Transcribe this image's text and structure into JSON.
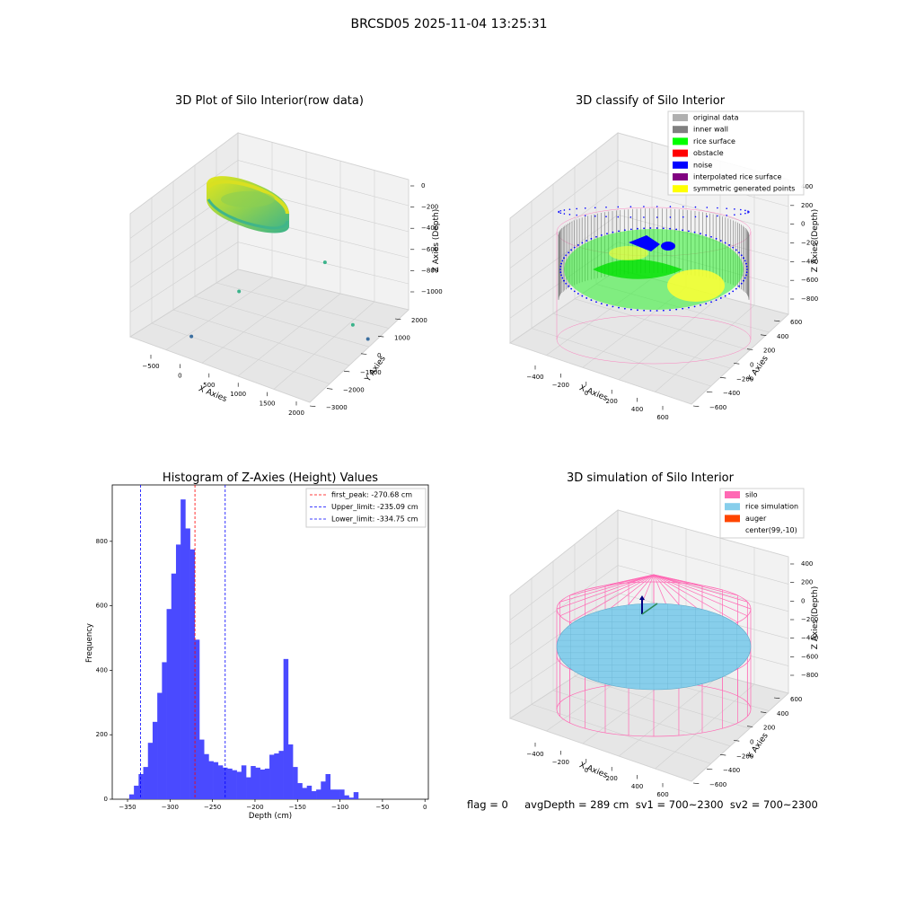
{
  "figure": {
    "suptitle": "BRCSD05 2025-11-04 13:25:31",
    "status_text": "flag = 0     avgDepth = 289 cm  sv1 = 700~2300  sv2 = 700~2300"
  },
  "colors": {
    "rice_gradient_low": "#3bb38b",
    "rice_gradient_high": "#e6e619",
    "original_data": "#b0b0b0",
    "inner_wall": "#808080",
    "rice_surface": "#00ff00",
    "obstacle": "#ff0000",
    "noise": "#0000ff",
    "interpolated_rice_surface": "#800080",
    "symmetric_generated_points": "#ffff00",
    "silo": "#ff69b4",
    "rice_simulation": "#87ceeb",
    "auger": "#ff4500",
    "hist_bar": "#4a4aff",
    "peak_line": "#ff0000",
    "limit_line": "#0000ff"
  },
  "chart_data": [
    {
      "type": "scatter3d",
      "title": "3D Plot of Silo Interior(row data)",
      "xlabel": "X Axies",
      "ylabel": "Y Axies",
      "zlabel": "Z Axies (Depth)",
      "x_ticks": [
        "−500",
        "0",
        "500",
        "1000",
        "1500",
        "2000"
      ],
      "y_ticks": [
        "2000",
        "1000",
        "0",
        "−1000",
        "−2000",
        "−3000"
      ],
      "z_ticks": [
        "0",
        "−200",
        "−400",
        "−600",
        "−800",
        "−1000"
      ],
      "outlier_points": [
        {
          "x": 1900,
          "y": 400,
          "z": -850
        },
        {
          "x": 1700,
          "y": 300,
          "z": -700
        },
        {
          "x": 900,
          "y": 1500,
          "z": -300
        },
        {
          "x": 300,
          "y": -800,
          "z": -500
        },
        {
          "x": 100,
          "y": -2500,
          "z": -900
        }
      ]
    },
    {
      "type": "scatter3d",
      "title": "3D classify of Silo Interior",
      "xlabel": "X Axies",
      "ylabel": "Y Axies",
      "zlabel": "Z Axies (Depth)",
      "x_ticks": [
        "−400",
        "−200",
        "0",
        "200",
        "400",
        "600"
      ],
      "y_ticks": [
        "600",
        "400",
        "200",
        "0",
        "−200",
        "−400",
        "−600"
      ],
      "z_ticks": [
        "400",
        "200",
        "0",
        "−200",
        "−400",
        "−600",
        "−800"
      ],
      "legend": [
        "original data",
        "inner wall",
        "rice surface",
        "obstacle",
        "noise",
        "interpolated rice surface",
        "symmetric generated points"
      ]
    },
    {
      "type": "bar",
      "title": "Histogram of Z-Axies (Height) Values",
      "xlabel": "Depth (cm)",
      "ylabel": "Frequency",
      "xlim": [
        -368,
        4
      ],
      "ylim": [
        0,
        975
      ],
      "x_ticks": [
        -350,
        -300,
        -250,
        -200,
        -150,
        -100,
        -50,
        0
      ],
      "y_ticks": [
        0,
        200,
        400,
        600,
        800
      ],
      "bin_start": -348,
      "bin_width": 5.5,
      "values": [
        15,
        42,
        78,
        100,
        175,
        240,
        330,
        425,
        590,
        700,
        790,
        930,
        840,
        775,
        495,
        185,
        140,
        118,
        115,
        105,
        98,
        95,
        90,
        85,
        105,
        68,
        103,
        98,
        92,
        95,
        138,
        142,
        150,
        435,
        170,
        100,
        50,
        35,
        42,
        25,
        30,
        55,
        78,
        30,
        30,
        30,
        12,
        5,
        22
      ],
      "lines": [
        {
          "label": "first_peak: -270.68 cm",
          "x": -270.68,
          "color": "#ff0000"
        },
        {
          "label": "Upper_limit: -235.09 cm",
          "x": -235.09,
          "color": "#0000ff"
        },
        {
          "label": "Lower_limit: -334.75 cm",
          "x": -334.75,
          "color": "#0000ff"
        }
      ]
    },
    {
      "type": "surface3d",
      "title": "3D simulation of Silo Interior",
      "xlabel": "X Axies",
      "ylabel": "Y Axies",
      "zlabel": "Z Axies (Depth)",
      "x_ticks": [
        "−400",
        "−200",
        "0",
        "200",
        "400",
        "600"
      ],
      "y_ticks": [
        "600",
        "400",
        "200",
        "0",
        "−200",
        "−400",
        "−600"
      ],
      "z_ticks": [
        "400",
        "200",
        "0",
        "−200",
        "−400",
        "−600",
        "−800"
      ],
      "legend": [
        "silo",
        "rice simulation",
        "auger",
        "center(99,-10)"
      ]
    }
  ]
}
